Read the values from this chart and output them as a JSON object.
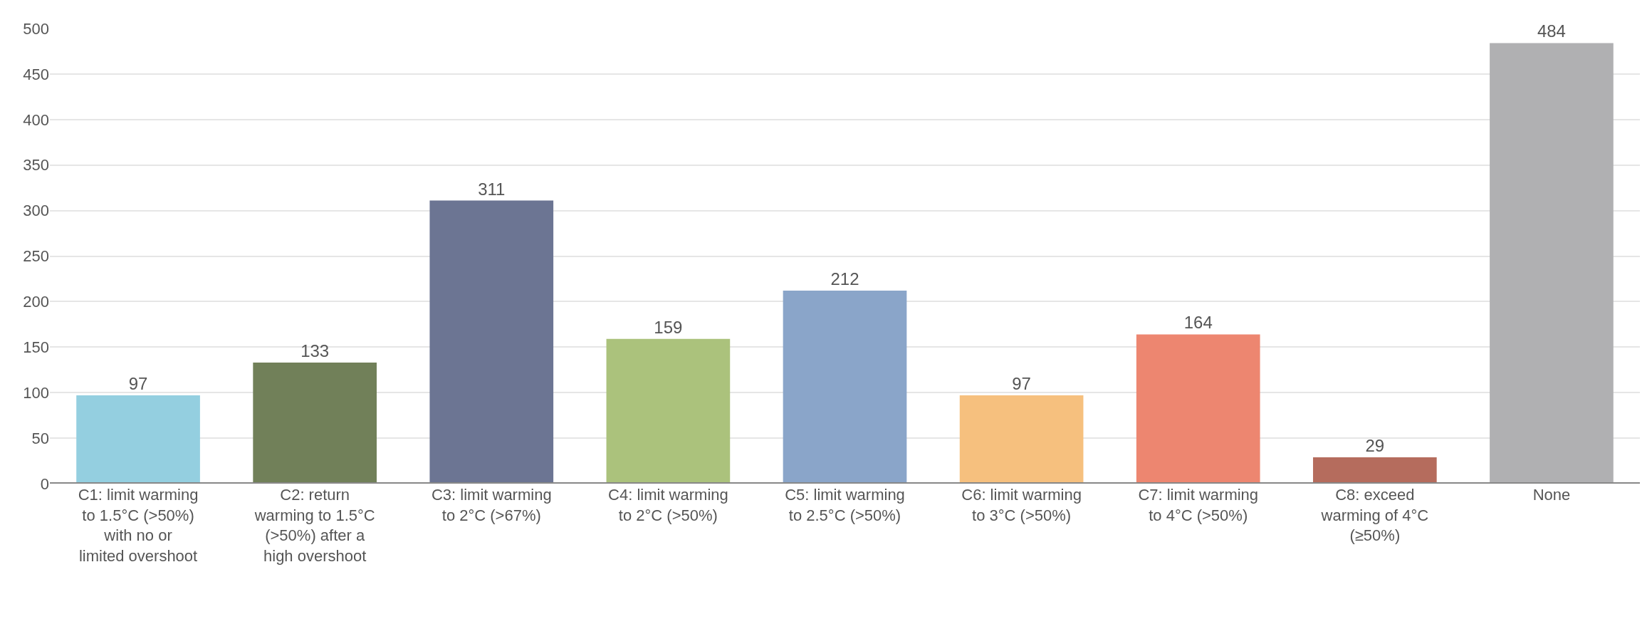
{
  "chart_data": {
    "type": "bar",
    "categories": [
      "C1: limit warming to 1.5°C (>50%) with no or limited overshoot",
      "C2: return warming to 1.5°C (>50%) after a high overshoot",
      "C3: limit warming to 2°C (>67%)",
      "C4: limit warming to 2°C (>50%)",
      "C5: limit warming to 2.5°C (>50%)",
      "C6: limit warming to 3°C (>50%)",
      "C7: limit warming to 4°C (>50%)",
      "C8: exceed warming of 4°C (≥50%)",
      "None"
    ],
    "values": [
      97,
      133,
      311,
      159,
      212,
      97,
      164,
      29,
      484
    ],
    "colors": [
      "#94cfe0",
      "#718059",
      "#6c7593",
      "#abc27c",
      "#8aa5c9",
      "#f6c07e",
      "#ed8670",
      "#b56c5d",
      "#b0b0b2"
    ],
    "ylim": [
      0,
      500
    ],
    "yticks": [
      0,
      50,
      100,
      150,
      200,
      250,
      300,
      350,
      400,
      450,
      500
    ],
    "grid": "y",
    "data_labels": true
  }
}
